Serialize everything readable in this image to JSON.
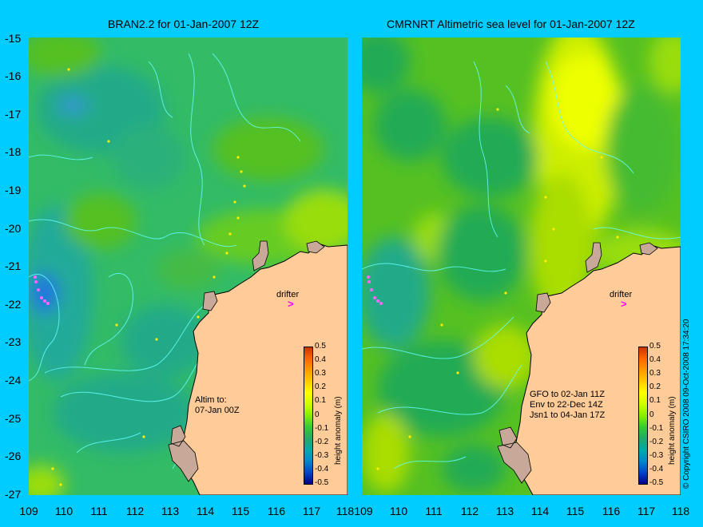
{
  "left_panel": {
    "title": "BRAN2.2 for 01-Jan-2007 12Z",
    "drifter_label": "drifter",
    "drifter_symbol": ">",
    "note": "Altim to:\n07-Jan 00Z",
    "colorbar_label": "height anomaly (m)"
  },
  "right_panel": {
    "title": "CMRNRT Altimetric sea level  for 01-Jan-2007 12Z",
    "drifter_label": "drifter",
    "drifter_symbol": ">",
    "note": "GFO to 02-Jan 11Z\nEnv to 22-Dec 14Z\nJsn1 to 04-Jan 17Z",
    "colorbar_label": "height anomaly (m)"
  },
  "y_ticks": [
    "-15",
    "-16",
    "-17",
    "-18",
    "-19",
    "-20",
    "-21",
    "-22",
    "-23",
    "-24",
    "-25",
    "-26",
    "-27"
  ],
  "left_x_ticks": [
    "109",
    "110",
    "111",
    "112",
    "113",
    "114",
    "115",
    "116",
    "117",
    "118"
  ],
  "right_x_ticks": [
    "109",
    "110",
    "111",
    "112",
    "113",
    "114",
    "115",
    "116",
    "117",
    "118"
  ],
  "colorbar_ticks": [
    "0.5",
    "0.4",
    "0.3",
    "0.2",
    "0.1",
    "0",
    "-0.1",
    "-0.2",
    "-0.3",
    "-0.4",
    "-0.5"
  ],
  "copyright": "© Copyright CSIRO 2008    09-Oct-2008 17:34:20",
  "colors": {
    "background": "#00ccff",
    "land": "#ffcc99",
    "reef": "#c8a898",
    "ocean_base": "#33bb66",
    "contour": "#66ffff",
    "drifter": "#ff00ff"
  },
  "colorbar_colors": [
    "#cc3300",
    "#ff6600",
    "#ff9900",
    "#ffcc00",
    "#ffff00",
    "#ccff00",
    "#88ee00",
    "#33cc33",
    "#22aa66",
    "#00aaaa",
    "#0088cc",
    "#0044cc",
    "#000088"
  ]
}
